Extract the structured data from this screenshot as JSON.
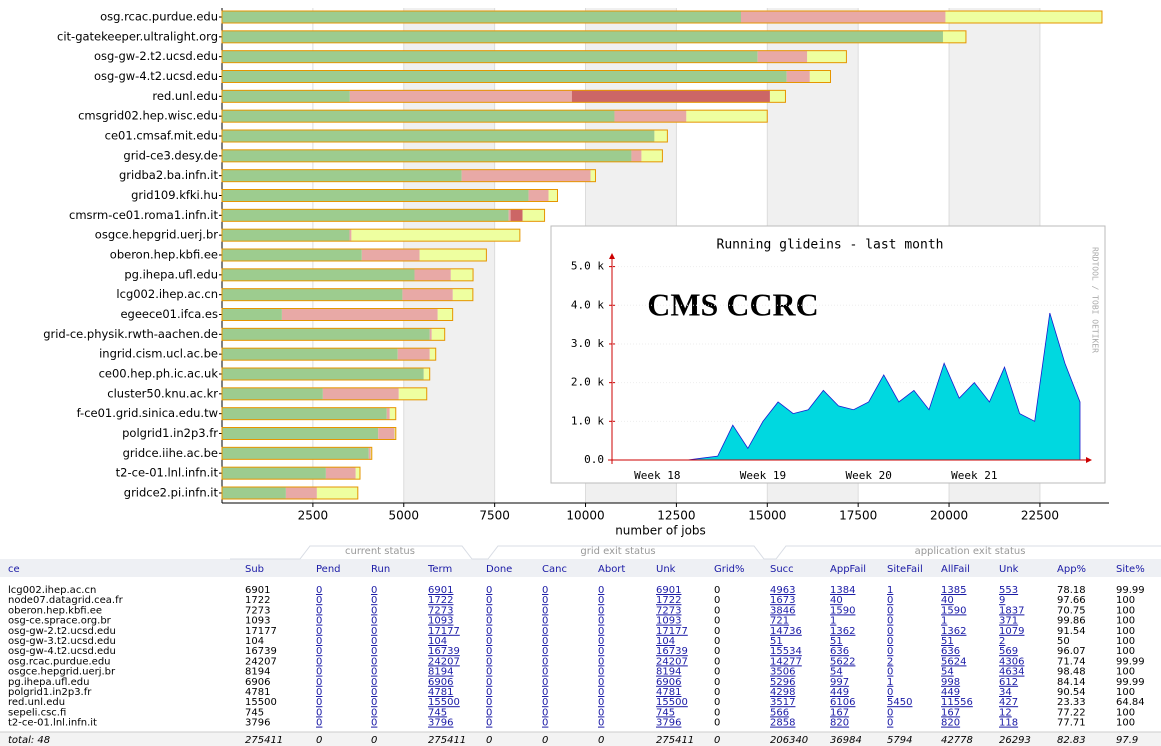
{
  "chart_data": [
    {
      "type": "hbar-stacked",
      "categories": [
        "osg.rcac.purdue.edu",
        "cit-gatekeeper.ultralight.org",
        "osg-gw-2.t2.ucsd.edu",
        "osg-gw-4.t2.ucsd.edu",
        "red.unl.edu",
        "cmsgrid02.hep.wisc.edu",
        "ce01.cmsaf.mit.edu",
        "grid-ce3.desy.de",
        "gridba2.ba.infn.it",
        "grid109.kfki.hu",
        "cmsrm-ce01.roma1.infn.it",
        "osgce.hepgrid.uerj.br",
        "oberon.hep.kbfi.ee",
        "pg.ihepa.ufl.edu",
        "lcg002.ihep.ac.cn",
        "egeece01.ifca.es",
        "grid-ce.physik.rwth-aachen.de",
        "ingrid.cism.ucl.ac.be",
        "ce00.hep.ph.ic.ac.uk",
        "cluster50.knu.ac.kr",
        "f-ce01.grid.sinica.edu.tw",
        "polgrid1.in2p3.fr",
        "gridce.iihe.ac.be",
        "t2-ce-01.lnl.infn.it",
        "gridce2.pi.infn.it"
      ],
      "series": [
        {
          "color": "#9dcc8f",
          "values": [
            14277,
            19833,
            14736,
            15534,
            3517,
            10796,
            11895,
            11263,
            6593,
            8433,
            7884,
            3506,
            3846,
            5296,
            4963,
            1648,
            5714,
            4835,
            5549,
            2775,
            4533,
            4298,
            4038,
            2858,
            1758
          ]
        },
        {
          "color": "#e8a9a6",
          "values": [
            5622,
            0,
            1362,
            636,
            6106,
            1978,
            0,
            275,
            3544,
            549,
            55,
            54,
            1590,
            997,
            1384,
            4285,
            55,
            879,
            0,
            2088,
            82,
            449,
            55,
            820,
            852
          ]
        },
        {
          "color": "#cc6666",
          "values": [
            2,
            0,
            0,
            0,
            5450,
            0,
            0,
            0,
            0,
            0,
            330,
            0,
            0,
            1,
            1,
            0,
            0,
            0,
            0,
            0,
            0,
            0,
            0,
            0,
            0
          ]
        },
        {
          "color": "#eeffa0",
          "values": [
            4306,
            632,
            1079,
            569,
            427,
            2225,
            357,
            577,
            137,
            247,
            604,
            4634,
            1837,
            612,
            553,
            412,
            357,
            165,
            165,
            769,
            165,
            34,
            27,
            118,
            1126
          ]
        }
      ],
      "xlabel": "number of jobs",
      "xlim": [
        0,
        24400
      ],
      "xticks": [
        2500,
        5000,
        7500,
        10000,
        12500,
        15000,
        17500,
        20000,
        22500
      ],
      "grid": true
    },
    {
      "type": "area",
      "title": "Running glideins - last month",
      "annotation": "CMS CCRC",
      "side_text": "RRDTOOL / TOBI OETIKER",
      "categories": [
        null,
        null,
        null,
        "Week 18",
        null,
        null,
        null,
        null,
        null,
        null,
        "Week 19",
        null,
        null,
        null,
        null,
        null,
        null,
        "Week 20",
        null,
        null,
        null,
        null,
        null,
        null,
        "Week 21",
        null,
        null,
        null,
        null,
        null,
        null,
        null
      ],
      "series": [
        {
          "color": "#00d8e0",
          "values": [
            0,
            0,
            0,
            0,
            0,
            0,
            50,
            100,
            900,
            300,
            1000,
            1500,
            1200,
            1300,
            1800,
            1400,
            1300,
            1500,
            2200,
            1500,
            1800,
            1300,
            2500,
            1600,
            2000,
            1500,
            2400,
            1200,
            1000,
            3800,
            2500,
            1500
          ]
        }
      ],
      "ylim": [
        0,
        5300
      ],
      "yticks": [
        {
          "value": 0,
          "label": "0.0"
        },
        {
          "value": 1000,
          "label": "1.0 k"
        },
        {
          "value": 2000,
          "label": "2.0 k"
        },
        {
          "value": 3000,
          "label": "3.0 k"
        },
        {
          "value": 4000,
          "label": "4.0 k"
        },
        {
          "value": 5000,
          "label": "5.0 k"
        }
      ]
    }
  ],
  "table": {
    "group_headers": [
      "current status",
      "grid exit status",
      "application exit status"
    ],
    "columns": [
      "ce",
      "Sub",
      "Pend",
      "Run",
      "Term",
      "Done",
      "Canc",
      "Abort",
      "Unk",
      "Grid%",
      "Succ",
      "AppFail",
      "SiteFail",
      "AllFail",
      "Unk",
      "App%",
      "Site%"
    ],
    "rows": [
      [
        "lcg002.ihep.ac.cn",
        "6901",
        "0",
        "0",
        "6901",
        "0",
        "0",
        "0",
        "6901",
        "0",
        "4963",
        "1384",
        "1",
        "1385",
        "553",
        "78.18",
        "99.99"
      ],
      [
        "node07.datagrid.cea.fr",
        "1722",
        "0",
        "0",
        "1722",
        "0",
        "0",
        "0",
        "1722",
        "0",
        "1673",
        "40",
        "0",
        "40",
        "9",
        "97.66",
        "100"
      ],
      [
        "oberon.hep.kbfi.ee",
        "7273",
        "0",
        "0",
        "7273",
        "0",
        "0",
        "0",
        "7273",
        "0",
        "3846",
        "1590",
        "0",
        "1590",
        "1837",
        "70.75",
        "100"
      ],
      [
        "osg-ce.sprace.org.br",
        "1093",
        "0",
        "0",
        "1093",
        "0",
        "0",
        "0",
        "1093",
        "0",
        "721",
        "1",
        "0",
        "1",
        "371",
        "99.86",
        "100"
      ],
      [
        "osg-gw-2.t2.ucsd.edu",
        "17177",
        "0",
        "0",
        "17177",
        "0",
        "0",
        "0",
        "17177",
        "0",
        "14736",
        "1362",
        "0",
        "1362",
        "1079",
        "91.54",
        "100"
      ],
      [
        "osg-gw-3.t2.ucsd.edu",
        "104",
        "0",
        "0",
        "104",
        "0",
        "0",
        "0",
        "104",
        "0",
        "51",
        "51",
        "0",
        "51",
        "2",
        "50",
        "100"
      ],
      [
        "osg-gw-4.t2.ucsd.edu",
        "16739",
        "0",
        "0",
        "16739",
        "0",
        "0",
        "0",
        "16739",
        "0",
        "15534",
        "636",
        "0",
        "636",
        "569",
        "96.07",
        "100"
      ],
      [
        "osg.rcac.purdue.edu",
        "24207",
        "0",
        "0",
        "24207",
        "0",
        "0",
        "0",
        "24207",
        "0",
        "14277",
        "5622",
        "2",
        "5624",
        "4306",
        "71.74",
        "99.99"
      ],
      [
        "osgce.hepgrid.uerj.br",
        "8194",
        "0",
        "0",
        "8194",
        "0",
        "0",
        "0",
        "8194",
        "0",
        "3506",
        "54",
        "0",
        "54",
        "4634",
        "98.48",
        "100"
      ],
      [
        "pg.ihepa.ufl.edu",
        "6906",
        "0",
        "0",
        "6906",
        "0",
        "0",
        "0",
        "6906",
        "0",
        "5296",
        "997",
        "1",
        "998",
        "612",
        "84.14",
        "99.99"
      ],
      [
        "polgrid1.in2p3.fr",
        "4781",
        "0",
        "0",
        "4781",
        "0",
        "0",
        "0",
        "4781",
        "0",
        "4298",
        "449",
        "0",
        "449",
        "34",
        "90.54",
        "100"
      ],
      [
        "red.unl.edu",
        "15500",
        "0",
        "0",
        "15500",
        "0",
        "0",
        "0",
        "15500",
        "0",
        "3517",
        "6106",
        "5450",
        "11556",
        "427",
        "23.33",
        "64.84"
      ],
      [
        "sepeli.csc.fi",
        "745",
        "0",
        "0",
        "745",
        "0",
        "0",
        "0",
        "745",
        "0",
        "566",
        "167",
        "0",
        "167",
        "12",
        "77.22",
        "100"
      ],
      [
        "t2-ce-01.lnl.infn.it",
        "3796",
        "0",
        "0",
        "3796",
        "0",
        "0",
        "0",
        "3796",
        "0",
        "2858",
        "820",
        "0",
        "820",
        "118",
        "77.71",
        "100"
      ]
    ],
    "total": [
      "total: 48",
      "275411",
      "0",
      "0",
      "275411",
      "0",
      "0",
      "0",
      "275411",
      "0",
      "206340",
      "36984",
      "5794",
      "42778",
      "26293",
      "82.83",
      "97.9"
    ]
  }
}
